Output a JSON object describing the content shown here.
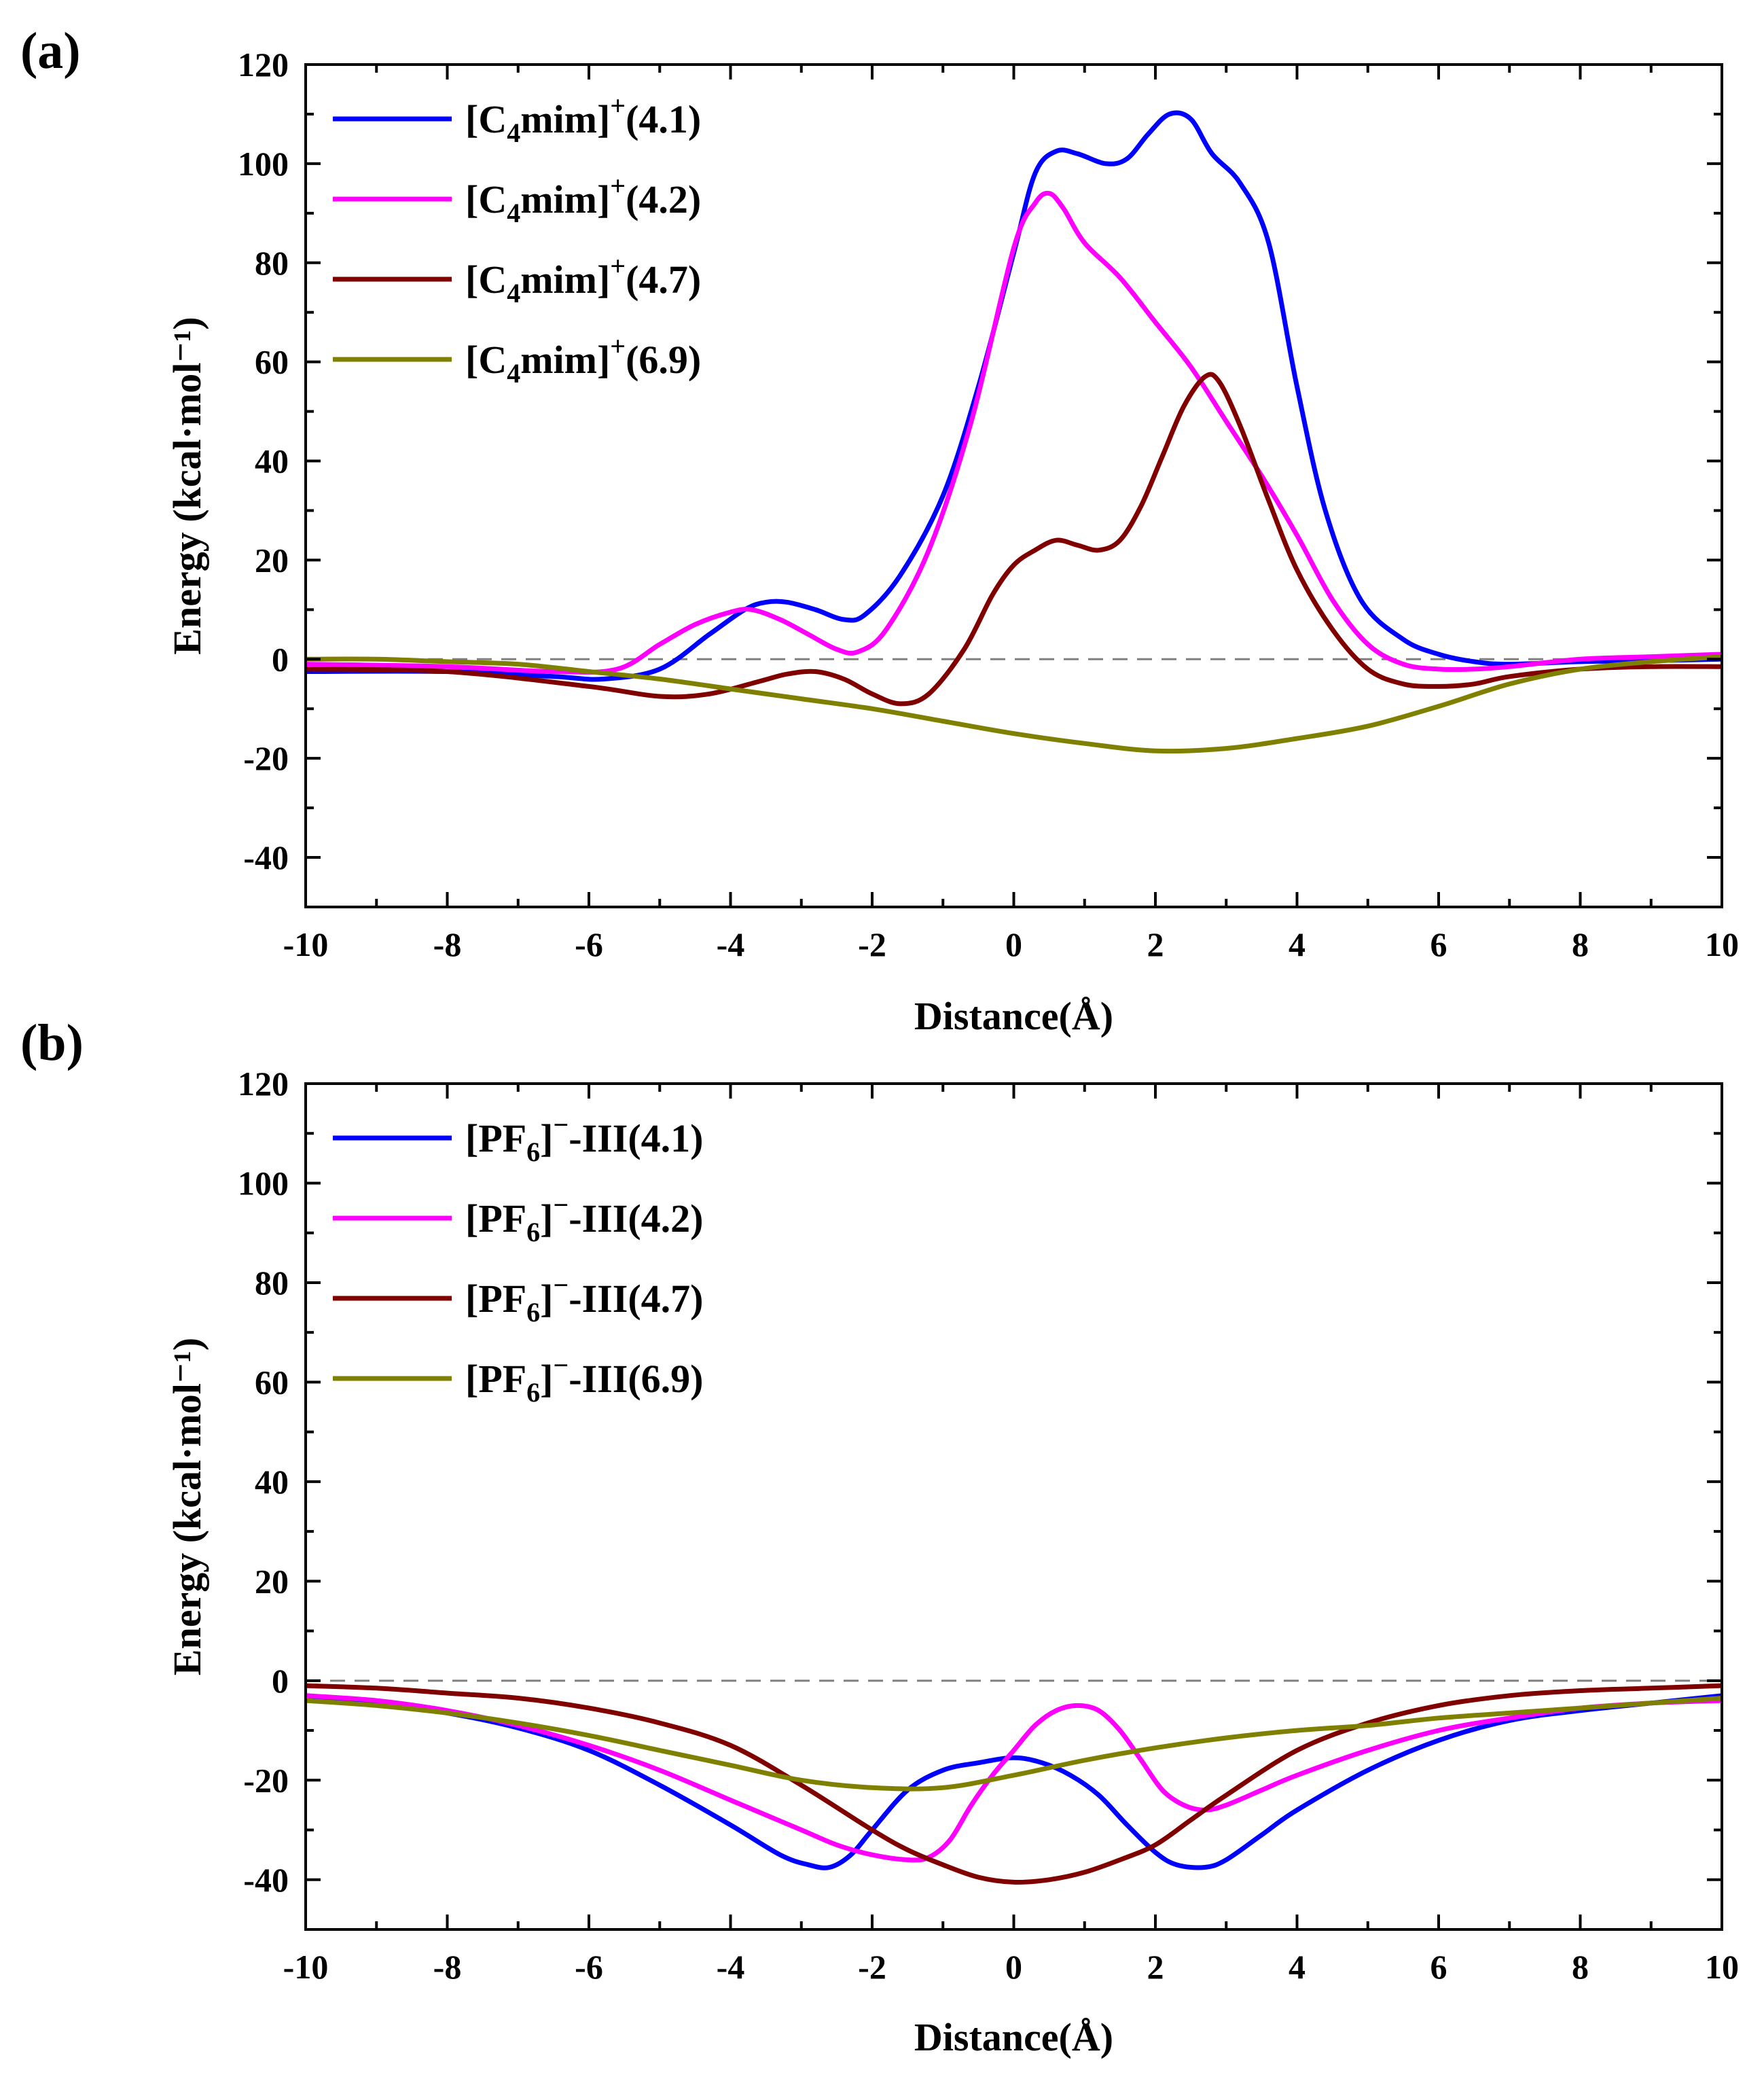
{
  "colors": {
    "blue": "#0000FF",
    "magenta": "#FF00FF",
    "darkred": "#800000",
    "olive": "#808000",
    "zero_line": "#808080"
  },
  "chart_data": [
    {
      "panel": "(a)",
      "type": "line",
      "xlabel": "Distance(Å)",
      "ylabel": "Energy (kcal·mol⁻¹)",
      "xlim": [
        -10,
        10
      ],
      "ylim": [
        -50,
        120
      ],
      "xticks": [
        -10,
        -8,
        -6,
        -4,
        -2,
        0,
        2,
        4,
        6,
        8,
        10
      ],
      "yticks": [
        -40,
        -20,
        0,
        20,
        40,
        60,
        80,
        100,
        120
      ],
      "zero_line": true,
      "legend_position": "top-left",
      "series": [
        {
          "name_parts": {
            "pre": "[C",
            "sub": "4",
            "mid": "mim]",
            "sup": "+",
            "post": "(4.1)"
          },
          "color": "blue",
          "x": [
            -10,
            -8,
            -6.5,
            -5.8,
            -5,
            -4.3,
            -3.8,
            -3.5,
            -3.2,
            -2.8,
            -2.4,
            -2.1,
            -1.6,
            -1,
            -0.5,
            0,
            0.3,
            0.6,
            0.9,
            1.3,
            1.6,
            1.9,
            2.2,
            2.5,
            2.8,
            3.2,
            3.6,
            4,
            4.4,
            4.9,
            5.5,
            6,
            6.5,
            7,
            8,
            9,
            10
          ],
          "y": [
            -2.5,
            -2.5,
            -3.5,
            -4,
            -2,
            5,
            10,
            11.5,
            11.5,
            10,
            8,
            9,
            17,
            33,
            55,
            82,
            98,
            102.5,
            102,
            100,
            101,
            106,
            110,
            109,
            102,
            96,
            84,
            55,
            30,
            12,
            4,
            1,
            -0.5,
            -1,
            -0.5,
            -0.3,
            0
          ]
        },
        {
          "name_parts": {
            "pre": "[C",
            "sub": "4",
            "mid": "mim]",
            "sup": "+",
            "post": "(4.2)"
          },
          "color": "magenta",
          "x": [
            -10,
            -8,
            -6.5,
            -5.6,
            -5,
            -4.5,
            -4,
            -3.7,
            -3.3,
            -2.9,
            -2.5,
            -2.2,
            -1.8,
            -1.2,
            -0.6,
            0,
            0.3,
            0.5,
            0.7,
            1,
            1.5,
            2,
            2.5,
            3,
            3.5,
            4,
            4.5,
            5,
            5.5,
            6,
            6.5,
            7,
            8,
            9,
            10
          ],
          "y": [
            -1,
            -1.5,
            -2.5,
            -2,
            3,
            7,
            9.5,
            10,
            8,
            5,
            2,
            1.5,
            6,
            22,
            48,
            83,
            92,
            94,
            91,
            84,
            77,
            68,
            59,
            48,
            37,
            25,
            12,
            3,
            -1,
            -2,
            -2,
            -1.5,
            0,
            0.5,
            1
          ]
        },
        {
          "name_parts": {
            "pre": "[C",
            "sub": "4",
            "mid": "mim]",
            "sup": "+",
            "post": "(4.7)"
          },
          "color": "darkred",
          "x": [
            -10,
            -8,
            -6,
            -5,
            -4.3,
            -3.6,
            -3.2,
            -2.8,
            -2.4,
            -2,
            -1.6,
            -1.2,
            -0.7,
            -0.3,
            0,
            0.3,
            0.6,
            0.9,
            1.2,
            1.5,
            1.8,
            2.1,
            2.4,
            2.7,
            2.9,
            3.2,
            3.6,
            4,
            4.5,
            5,
            5.5,
            6,
            6.5,
            7,
            8,
            9,
            10
          ],
          "y": [
            -2,
            -2.5,
            -5.5,
            -7.5,
            -7,
            -4.5,
            -3,
            -2.5,
            -4,
            -7,
            -9,
            -7,
            2,
            13,
            19,
            22,
            24,
            23,
            22,
            24,
            31,
            41,
            51,
            57,
            56,
            47,
            32,
            18,
            6,
            -2,
            -5,
            -5.5,
            -5,
            -3.5,
            -2,
            -1.5,
            -1.5
          ]
        },
        {
          "name_parts": {
            "pre": "[C",
            "sub": "4",
            "mid": "mim]",
            "sup": "+",
            "post": "(6.9)"
          },
          "color": "olive",
          "x": [
            -10,
            -9,
            -8,
            -7,
            -6,
            -5,
            -4,
            -3,
            -2,
            -1,
            0,
            1,
            2,
            3,
            4,
            5,
            6,
            7,
            8,
            9,
            10
          ],
          "y": [
            0,
            0,
            -0.5,
            -1,
            -2.5,
            -4,
            -6,
            -8,
            -10,
            -12.5,
            -15,
            -17,
            -18.5,
            -18,
            -16,
            -13.5,
            -9.5,
            -5,
            -2,
            -0.5,
            0.5
          ]
        }
      ]
    },
    {
      "panel": "(b)",
      "type": "line",
      "xlabel": "Distance(Å)",
      "ylabel": "Energy (kcal·mol⁻¹)",
      "xlim": [
        -10,
        10
      ],
      "ylim": [
        -50,
        120
      ],
      "xticks": [
        -10,
        -8,
        -6,
        -4,
        -2,
        0,
        2,
        4,
        6,
        8,
        10
      ],
      "yticks": [
        -40,
        -20,
        0,
        20,
        40,
        60,
        80,
        100,
        120
      ],
      "zero_line": true,
      "legend_position": "top-left",
      "series": [
        {
          "name_parts": {
            "pre": "[PF",
            "sub": "6",
            "mid": "]",
            "sup": "−",
            "post": "-III(4.1)"
          },
          "color": "blue",
          "x": [
            -10,
            -9,
            -8,
            -7,
            -6,
            -5,
            -4,
            -3.3,
            -2.9,
            -2.6,
            -2.3,
            -2,
            -1.5,
            -1,
            -0.5,
            0,
            0.4,
            0.8,
            1.2,
            1.6,
            2,
            2.3,
            2.7,
            3,
            3.5,
            4,
            5,
            6,
            7,
            8,
            9,
            10
          ],
          "y": [
            -3,
            -4.5,
            -6.5,
            -9.5,
            -14,
            -21,
            -29,
            -35,
            -37,
            -37.5,
            -35,
            -30,
            -22,
            -18,
            -16.5,
            -15.5,
            -16.5,
            -19,
            -23,
            -29,
            -34.5,
            -37,
            -37.5,
            -36,
            -31,
            -26,
            -18,
            -12,
            -8,
            -6,
            -4.5,
            -3
          ]
        },
        {
          "name_parts": {
            "pre": "[PF",
            "sub": "6",
            "mid": "]",
            "sup": "−",
            "post": "-III(4.2)"
          },
          "color": "magenta",
          "x": [
            -10,
            -9,
            -8,
            -7,
            -6,
            -5,
            -4,
            -3,
            -2.5,
            -2,
            -1.5,
            -1.2,
            -0.9,
            -0.6,
            -0.3,
            0,
            0.3,
            0.6,
            0.9,
            1.2,
            1.5,
            1.8,
            2.1,
            2.4,
            2.7,
            3,
            3.5,
            4,
            5,
            6,
            7,
            8,
            9,
            10
          ],
          "y": [
            -3,
            -4,
            -6,
            -9,
            -13,
            -18,
            -24,
            -30,
            -33,
            -35,
            -36,
            -35.5,
            -32,
            -25,
            -19,
            -14,
            -9,
            -6,
            -5,
            -6,
            -10,
            -16,
            -22,
            -25,
            -26,
            -25,
            -22,
            -19,
            -14,
            -10,
            -7.5,
            -5.5,
            -4.5,
            -4
          ]
        },
        {
          "name_parts": {
            "pre": "[PF",
            "sub": "6",
            "mid": "]",
            "sup": "−",
            "post": "-III(4.7)"
          },
          "color": "darkred",
          "x": [
            -10,
            -9,
            -8,
            -7,
            -6,
            -5,
            -4,
            -3,
            -2,
            -1.5,
            -1,
            -0.5,
            0,
            0.5,
            1,
            1.5,
            2,
            2.5,
            3,
            4,
            5,
            6,
            7,
            8,
            9,
            10
          ],
          "y": [
            -1,
            -1.5,
            -2.5,
            -3.5,
            -5.5,
            -8.5,
            -13,
            -21,
            -30,
            -34,
            -37,
            -39.5,
            -40.5,
            -40,
            -38.5,
            -36,
            -33,
            -28,
            -23,
            -14,
            -8.5,
            -5,
            -3,
            -2,
            -1.5,
            -1
          ]
        },
        {
          "name_parts": {
            "pre": "[PF",
            "sub": "6",
            "mid": "]",
            "sup": "−",
            "post": "-III(6.9)"
          },
          "color": "olive",
          "x": [
            -10,
            -9,
            -8,
            -7,
            -6,
            -5,
            -4,
            -3,
            -2,
            -1,
            0,
            1,
            2,
            3,
            4,
            5,
            6,
            7,
            8,
            9,
            10
          ],
          "y": [
            -4,
            -5,
            -6.5,
            -8.5,
            -11,
            -14,
            -17,
            -20,
            -21.5,
            -21.5,
            -19,
            -16,
            -13.5,
            -11.5,
            -10,
            -9,
            -7.5,
            -6.5,
            -5.5,
            -4.5,
            -3.5
          ]
        }
      ]
    }
  ]
}
